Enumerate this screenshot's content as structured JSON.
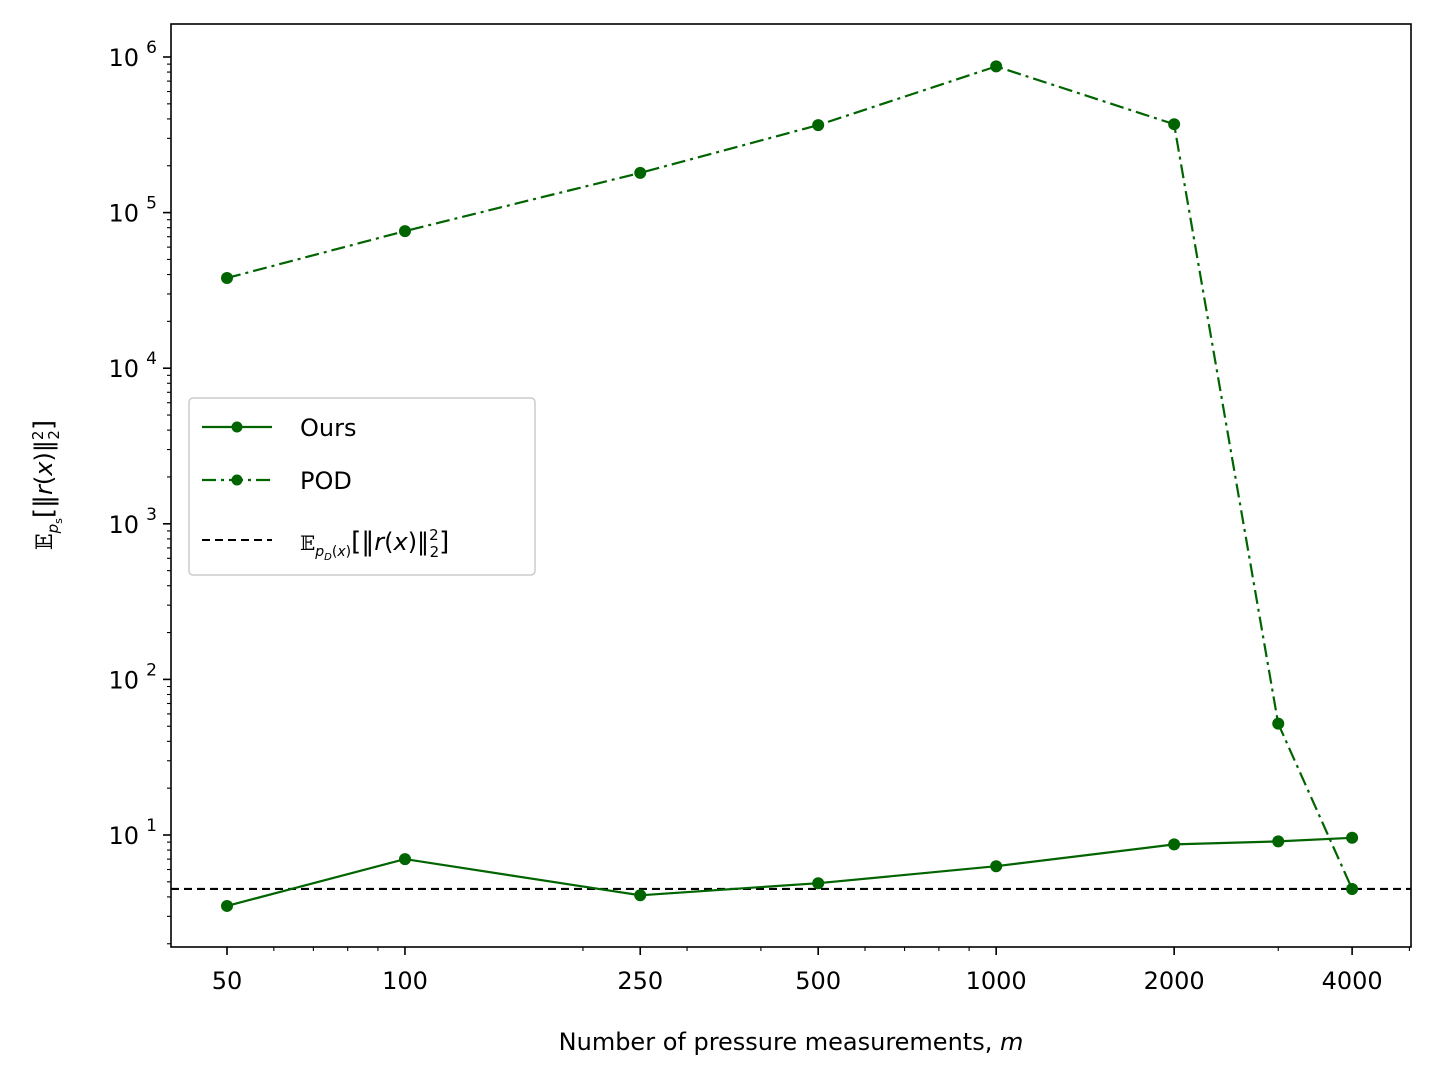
{
  "chart_data": {
    "type": "line",
    "xscale": "log",
    "yscale": "log",
    "xlabel": "Number of pressure measurements, m",
    "ylabel": "E_ps[‖r(x)‖²₂]",
    "xticks": [
      50,
      100,
      250,
      500,
      1000,
      2000,
      4000
    ],
    "xtick_labels": [
      "50",
      "100",
      "250",
      "500",
      "1000",
      "2000",
      "4000"
    ],
    "yticks": [
      10,
      100,
      1000,
      10000,
      100000,
      1000000
    ],
    "ytick_labels": [
      "10",
      "10",
      "10",
      "10",
      "10",
      "10"
    ],
    "ytick_exponents": [
      "1",
      "2",
      "3",
      "4",
      "5",
      "6"
    ],
    "series": [
      {
        "name": "Ours",
        "style": "solid",
        "marker": "circle",
        "color": "#006400",
        "x": [
          50,
          100,
          250,
          500,
          1000,
          2000,
          3000,
          4000
        ],
        "y": [
          3.5,
          7.0,
          4.1,
          4.9,
          6.3,
          8.7,
          9.1,
          9.6
        ]
      },
      {
        "name": "POD",
        "style": "dashdot",
        "marker": "circle",
        "color": "#006400",
        "x": [
          50,
          100,
          250,
          500,
          1000,
          2000,
          3000,
          4000
        ],
        "y": [
          38000,
          76000,
          180000,
          365000,
          870000,
          370000,
          52,
          4.5
        ]
      }
    ],
    "reference_line": {
      "name": "E_pD(x)[‖r(x)‖²₂]",
      "style": "dashed",
      "color": "#000000",
      "y": 4.5
    },
    "legend_position": "center-left"
  },
  "legend": {
    "items": [
      {
        "label": "Ours"
      },
      {
        "label": "POD"
      },
      {
        "label": "𝔼"
      }
    ]
  }
}
